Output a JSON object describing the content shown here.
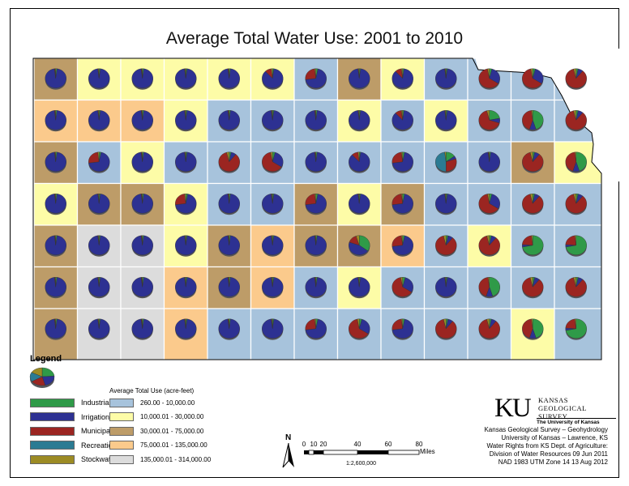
{
  "title": "Average Total Water Use: 2001 to 2010",
  "legend": {
    "title": "Legend",
    "categories": [
      {
        "label": "Industrial",
        "color": "#2f9a48"
      },
      {
        "label": "Irrigation",
        "color": "#2d3192"
      },
      {
        "label": "Municipal",
        "color": "#9b2521"
      },
      {
        "label": "Recreation",
        "color": "#2b7b93"
      },
      {
        "label": "Stockwater",
        "color": "#9c8b24"
      }
    ],
    "range_title": "Average Total Use (acre-feet)",
    "ranges": [
      {
        "label": "260.00 - 10,000.00",
        "color": "#a7c3dc"
      },
      {
        "label": "10,000.01 - 30,000.00",
        "color": "#fdfca7"
      },
      {
        "label": "30,000.01 - 75,000.00",
        "color": "#bd9c68"
      },
      {
        "label": "75,000.01 - 135,000.00",
        "color": "#fbca8c"
      },
      {
        "label": "135,000.01 - 314,000.00",
        "color": "#dcdcdc"
      }
    ]
  },
  "scale": {
    "ticks": [
      "0",
      "10",
      "20",
      "40",
      "60",
      "80"
    ],
    "unit": "Miles",
    "ratio": "1:2,600,000"
  },
  "north_label": "N",
  "logo": {
    "mark": "KU",
    "name_line1": "KANSAS",
    "name_line2": "GEOLOGICAL",
    "name_line3": "SURVEY",
    "university": "The University of Kansas"
  },
  "credits": [
    "Kansas Geological Survey – Geohydrology",
    "University of Kansas – Lawrence, KS",
    "Water Rights from KS Dept. of Agriculture:",
    "Division of Water Resources 09 Jun 2011",
    "NAD 1983 UTM Zone 14   13 Aug 2012"
  ],
  "map_data": {
    "description_classes": "b = 260-10,000; y = 10,000.01-30,000; t = 30,000.01-75,000; o = 75,000.01-135,000; g = 135,000.01-314,000",
    "pie_types": {
      "I": [
        0.02,
        0.96,
        0.01,
        0.0,
        0.01
      ],
      "Im": [
        0.02,
        0.86,
        0.1,
        0.0,
        0.02
      ],
      "IM": [
        0.03,
        0.7,
        0.25,
        0.0,
        0.02
      ],
      "MI": [
        0.04,
        0.3,
        0.63,
        0.0,
        0.03
      ],
      "M": [
        0.03,
        0.08,
        0.85,
        0.0,
        0.04
      ],
      "MG": [
        0.22,
        0.08,
        0.66,
        0.0,
        0.04
      ],
      "G": [
        0.72,
        0.04,
        0.22,
        0.0,
        0.02
      ],
      "GM": [
        0.45,
        0.1,
        0.43,
        0.0,
        0.02
      ],
      "R": [
        0.15,
        0.05,
        0.3,
        0.48,
        0.02
      ],
      "GI": [
        0.35,
        0.45,
        0.15,
        0.0,
        0.05
      ]
    },
    "rows": [
      [
        "t:I",
        "y:I",
        "y:I",
        "y:I",
        "y:I",
        "y:Im",
        "b:IM",
        "t:I",
        "y:Im",
        "b:I",
        "b:MI",
        "b:MI",
        "b:M"
      ],
      [
        "o:I",
        "o:I",
        "o:I",
        "y:I",
        "b:I",
        "b:I",
        "b:I",
        "y:I",
        "b:Im",
        "y:I",
        "b:MG",
        "b:GM",
        "b:M"
      ],
      [
        "t:I",
        "b:IM",
        "y:I",
        "b:I",
        "b:M",
        "b:MI",
        "b:I",
        "b:Im",
        "b:IM",
        "b:R",
        "b:I",
        "t:M",
        "y:GM"
      ],
      [
        "y:I",
        "t:I",
        "t:I",
        "y:IM",
        "b:I",
        "b:I",
        "t:IM",
        "y:I",
        "t:IM",
        "b:I",
        "b:MI",
        "b:M",
        "b:M"
      ],
      [
        "t:I",
        "g:I",
        "g:I",
        "y:I",
        "t:I",
        "o:I",
        "t:I",
        "t:GI",
        "o:IM",
        "b:M",
        "y:M",
        "b:G",
        "b:G"
      ],
      [
        "t:I",
        "g:I",
        "g:I",
        "o:I",
        "t:I",
        "o:I",
        "b:I",
        "y:I",
        "b:MI",
        "b:I",
        "b:GM",
        "b:M",
        "b:M"
      ],
      [
        "t:I",
        "g:I",
        "g:I",
        "o:I",
        "b:I",
        "b:I",
        "b:IM",
        "b:MI",
        "b:IM",
        "b:M",
        "b:M",
        "y:GM",
        "b:G"
      ]
    ]
  }
}
